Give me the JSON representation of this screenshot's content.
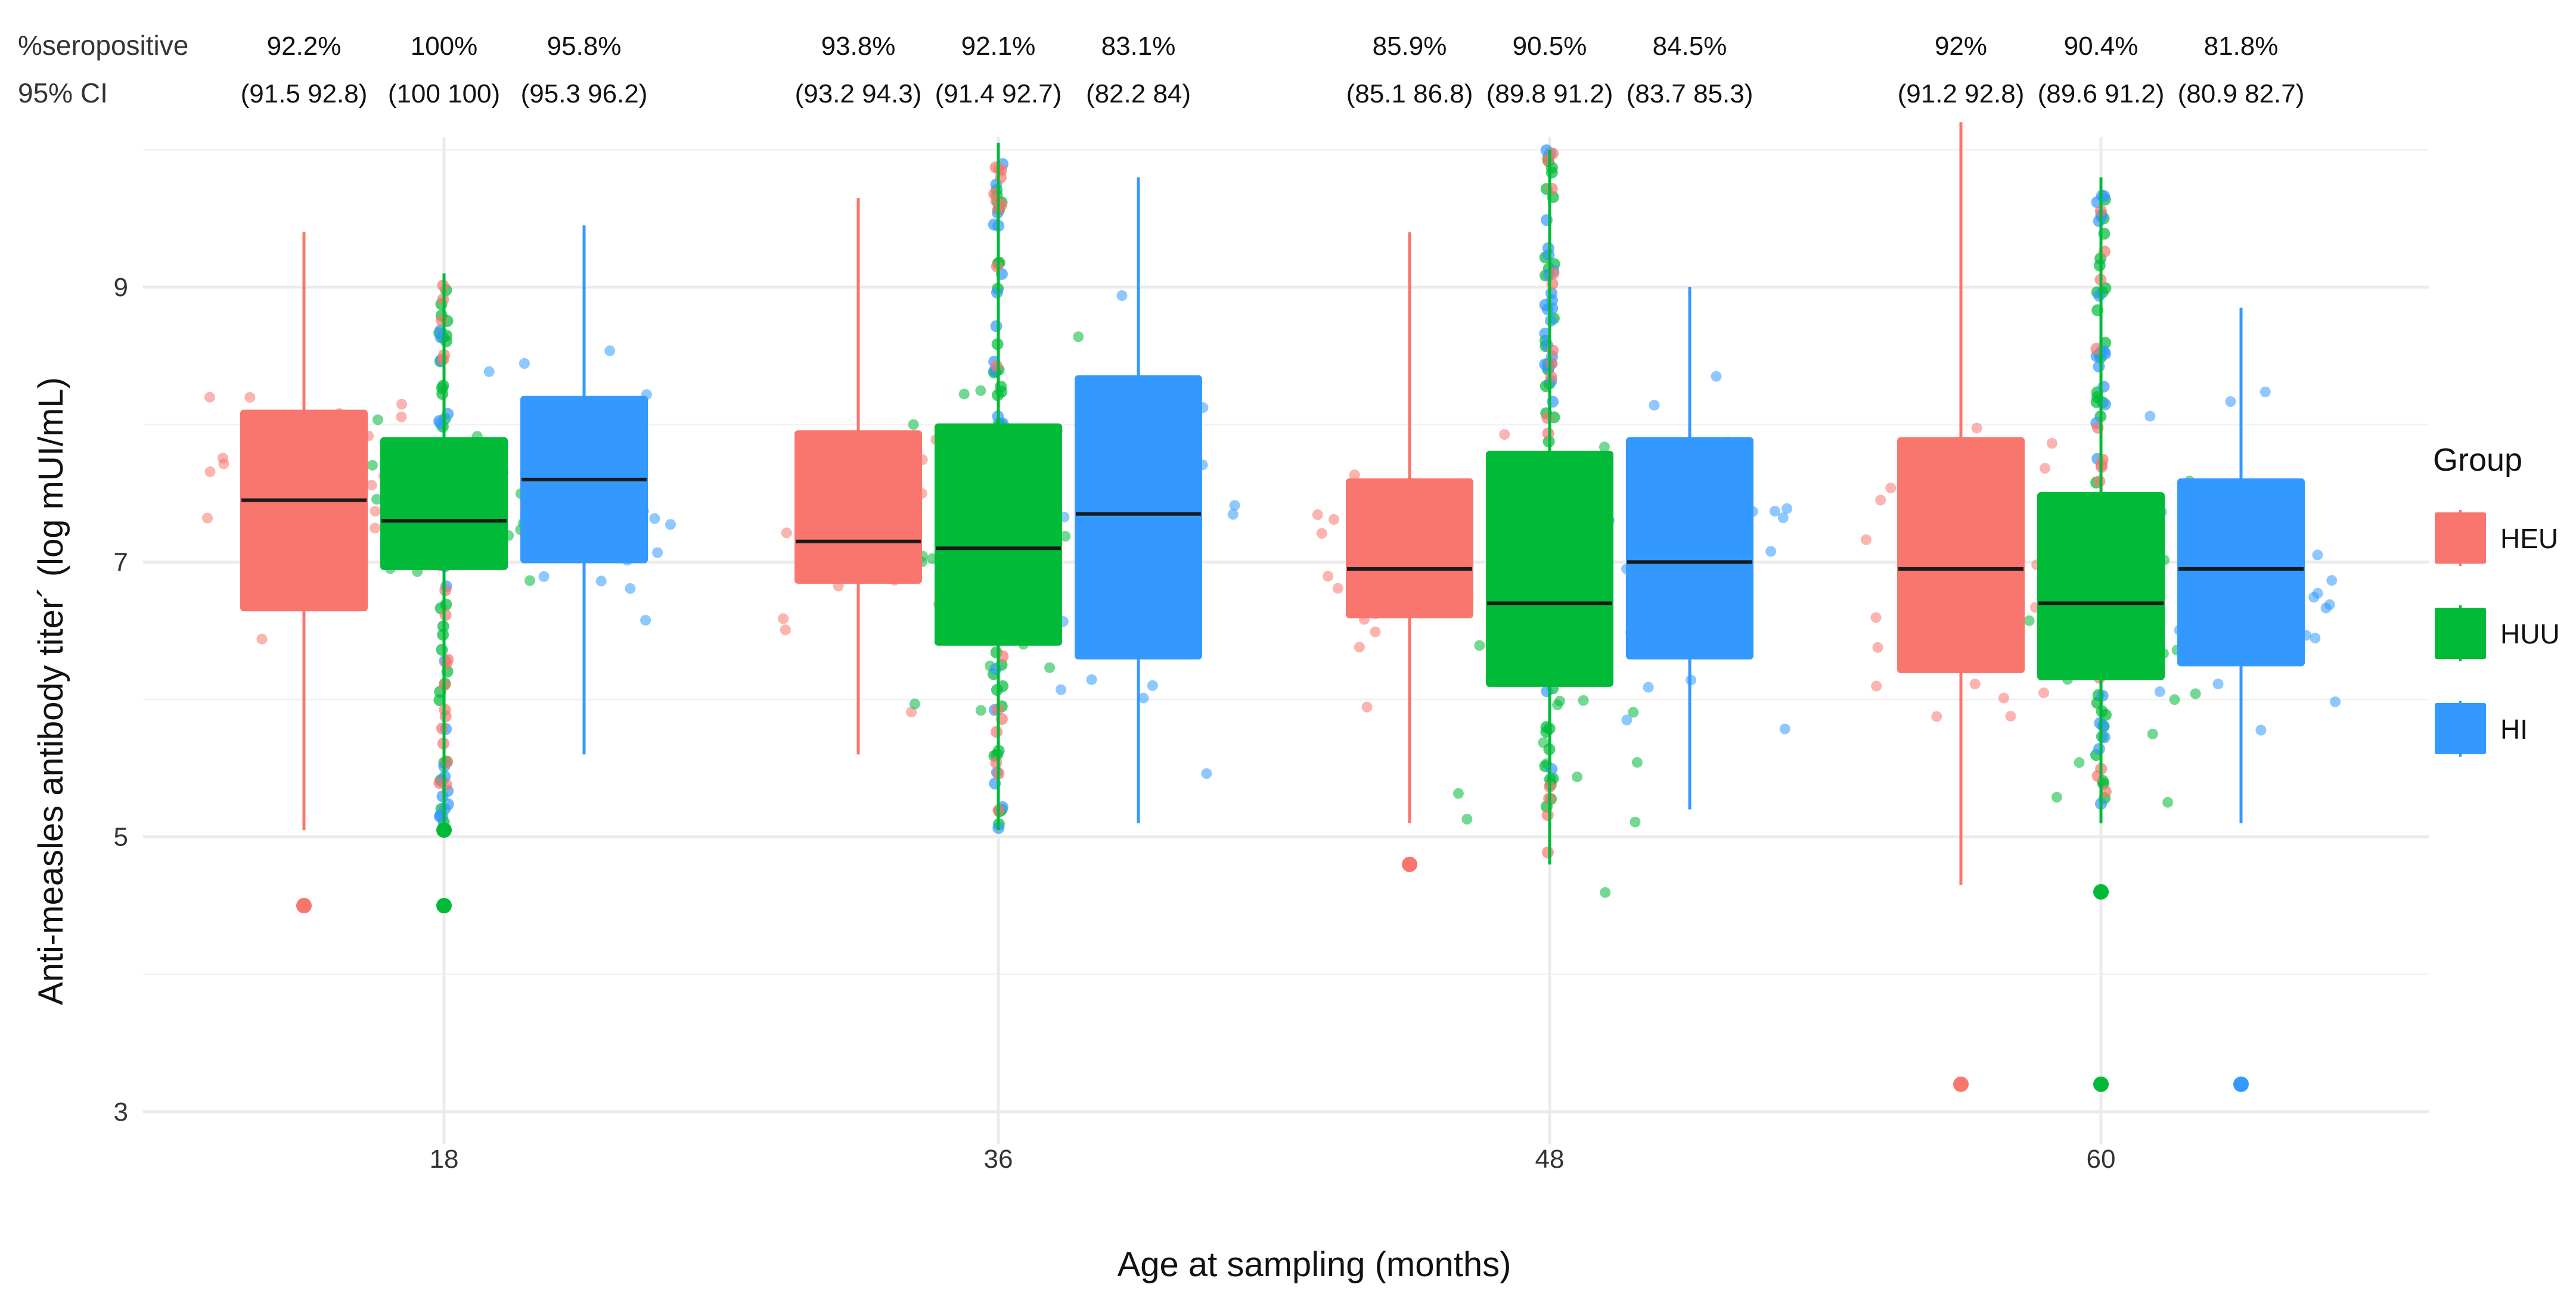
{
  "chart_data": {
    "type": "box",
    "xlabel": "Age at sampling (months)",
    "ylabel": "Anti-measles antibody titer´ (log mUI/mL)",
    "ylim": [
      2.9,
      10.3
    ],
    "y_ticks": [
      "3",
      "5",
      "7",
      "9"
    ],
    "y_tick_values": [
      3,
      5,
      7,
      9
    ],
    "grid": true,
    "categories": [
      "18",
      "36",
      "48",
      "60"
    ],
    "header_labels": [
      "%seropositive",
      "95% CI"
    ],
    "legend": {
      "title": "Group",
      "position": "right",
      "items": [
        {
          "name": "HEU",
          "color": "#F8766D"
        },
        {
          "name": "HUU",
          "color": "#00BA38"
        },
        {
          "name": "HI",
          "color": "#3399FF"
        }
      ]
    },
    "series": [
      {
        "name": "HEU",
        "color": "#F8766D",
        "boxes": [
          {
            "q1": 6.65,
            "median": 7.45,
            "q3": 8.1,
            "whisker_low": 5.05,
            "whisker_high": 9.4,
            "outliers": [
              4.5
            ]
          },
          {
            "q1": 6.85,
            "median": 7.15,
            "q3": 7.95,
            "whisker_low": 5.6,
            "whisker_high": 9.65,
            "outliers": []
          },
          {
            "q1": 6.6,
            "median": 6.95,
            "q3": 7.6,
            "whisker_low": 5.1,
            "whisker_high": 9.4,
            "outliers": [
              4.8
            ]
          },
          {
            "q1": 6.2,
            "median": 6.95,
            "q3": 7.9,
            "whisker_low": 4.65,
            "whisker_high": 10.2,
            "outliers": [
              3.2
            ]
          }
        ],
        "seropositive": [
          "92.2%",
          "93.8%",
          "85.9%",
          "92%"
        ],
        "ci": [
          "(91.5 92.8)",
          "(93.2 94.3)",
          "(85.1 86.8)",
          "(91.2 92.8)"
        ]
      },
      {
        "name": "HUU",
        "color": "#00BA38",
        "boxes": [
          {
            "q1": 6.95,
            "median": 7.3,
            "q3": 7.9,
            "whisker_low": 5.1,
            "whisker_high": 9.1,
            "outliers": [
              5.05,
              4.5
            ]
          },
          {
            "q1": 6.4,
            "median": 7.1,
            "q3": 8.0,
            "whisker_low": 5.05,
            "whisker_high": 10.05,
            "outliers": []
          },
          {
            "q1": 6.1,
            "median": 6.7,
            "q3": 7.8,
            "whisker_low": 4.8,
            "whisker_high": 10.0,
            "outliers": []
          },
          {
            "q1": 6.15,
            "median": 6.7,
            "q3": 7.5,
            "whisker_low": 5.1,
            "whisker_high": 9.8,
            "outliers": [
              4.6,
              3.2
            ]
          }
        ],
        "seropositive": [
          "100%",
          "92.1%",
          "90.5%",
          "90.4%"
        ],
        "ci": [
          "(100 100)",
          "(91.4 92.7)",
          "(89.8 91.2)",
          "(89.6 91.2)"
        ]
      },
      {
        "name": "HI",
        "color": "#3399FF",
        "boxes": [
          {
            "q1": 7.0,
            "median": 7.6,
            "q3": 8.2,
            "whisker_low": 5.6,
            "whisker_high": 9.45,
            "outliers": []
          },
          {
            "q1": 6.3,
            "median": 7.35,
            "q3": 8.35,
            "whisker_low": 5.1,
            "whisker_high": 9.8,
            "outliers": []
          },
          {
            "q1": 6.3,
            "median": 7.0,
            "q3": 7.9,
            "whisker_low": 5.2,
            "whisker_high": 9.0,
            "outliers": []
          },
          {
            "q1": 6.25,
            "median": 6.95,
            "q3": 7.6,
            "whisker_low": 5.1,
            "whisker_high": 8.85,
            "outliers": [
              3.2
            ]
          }
        ],
        "seropositive": [
          "95.8%",
          "83.1%",
          "84.5%",
          "81.8%"
        ],
        "ci": [
          "(95.3 96.2)",
          "(82.2 84)",
          "(83.7 85.3)",
          "(80.9 82.7)"
        ]
      }
    ]
  }
}
